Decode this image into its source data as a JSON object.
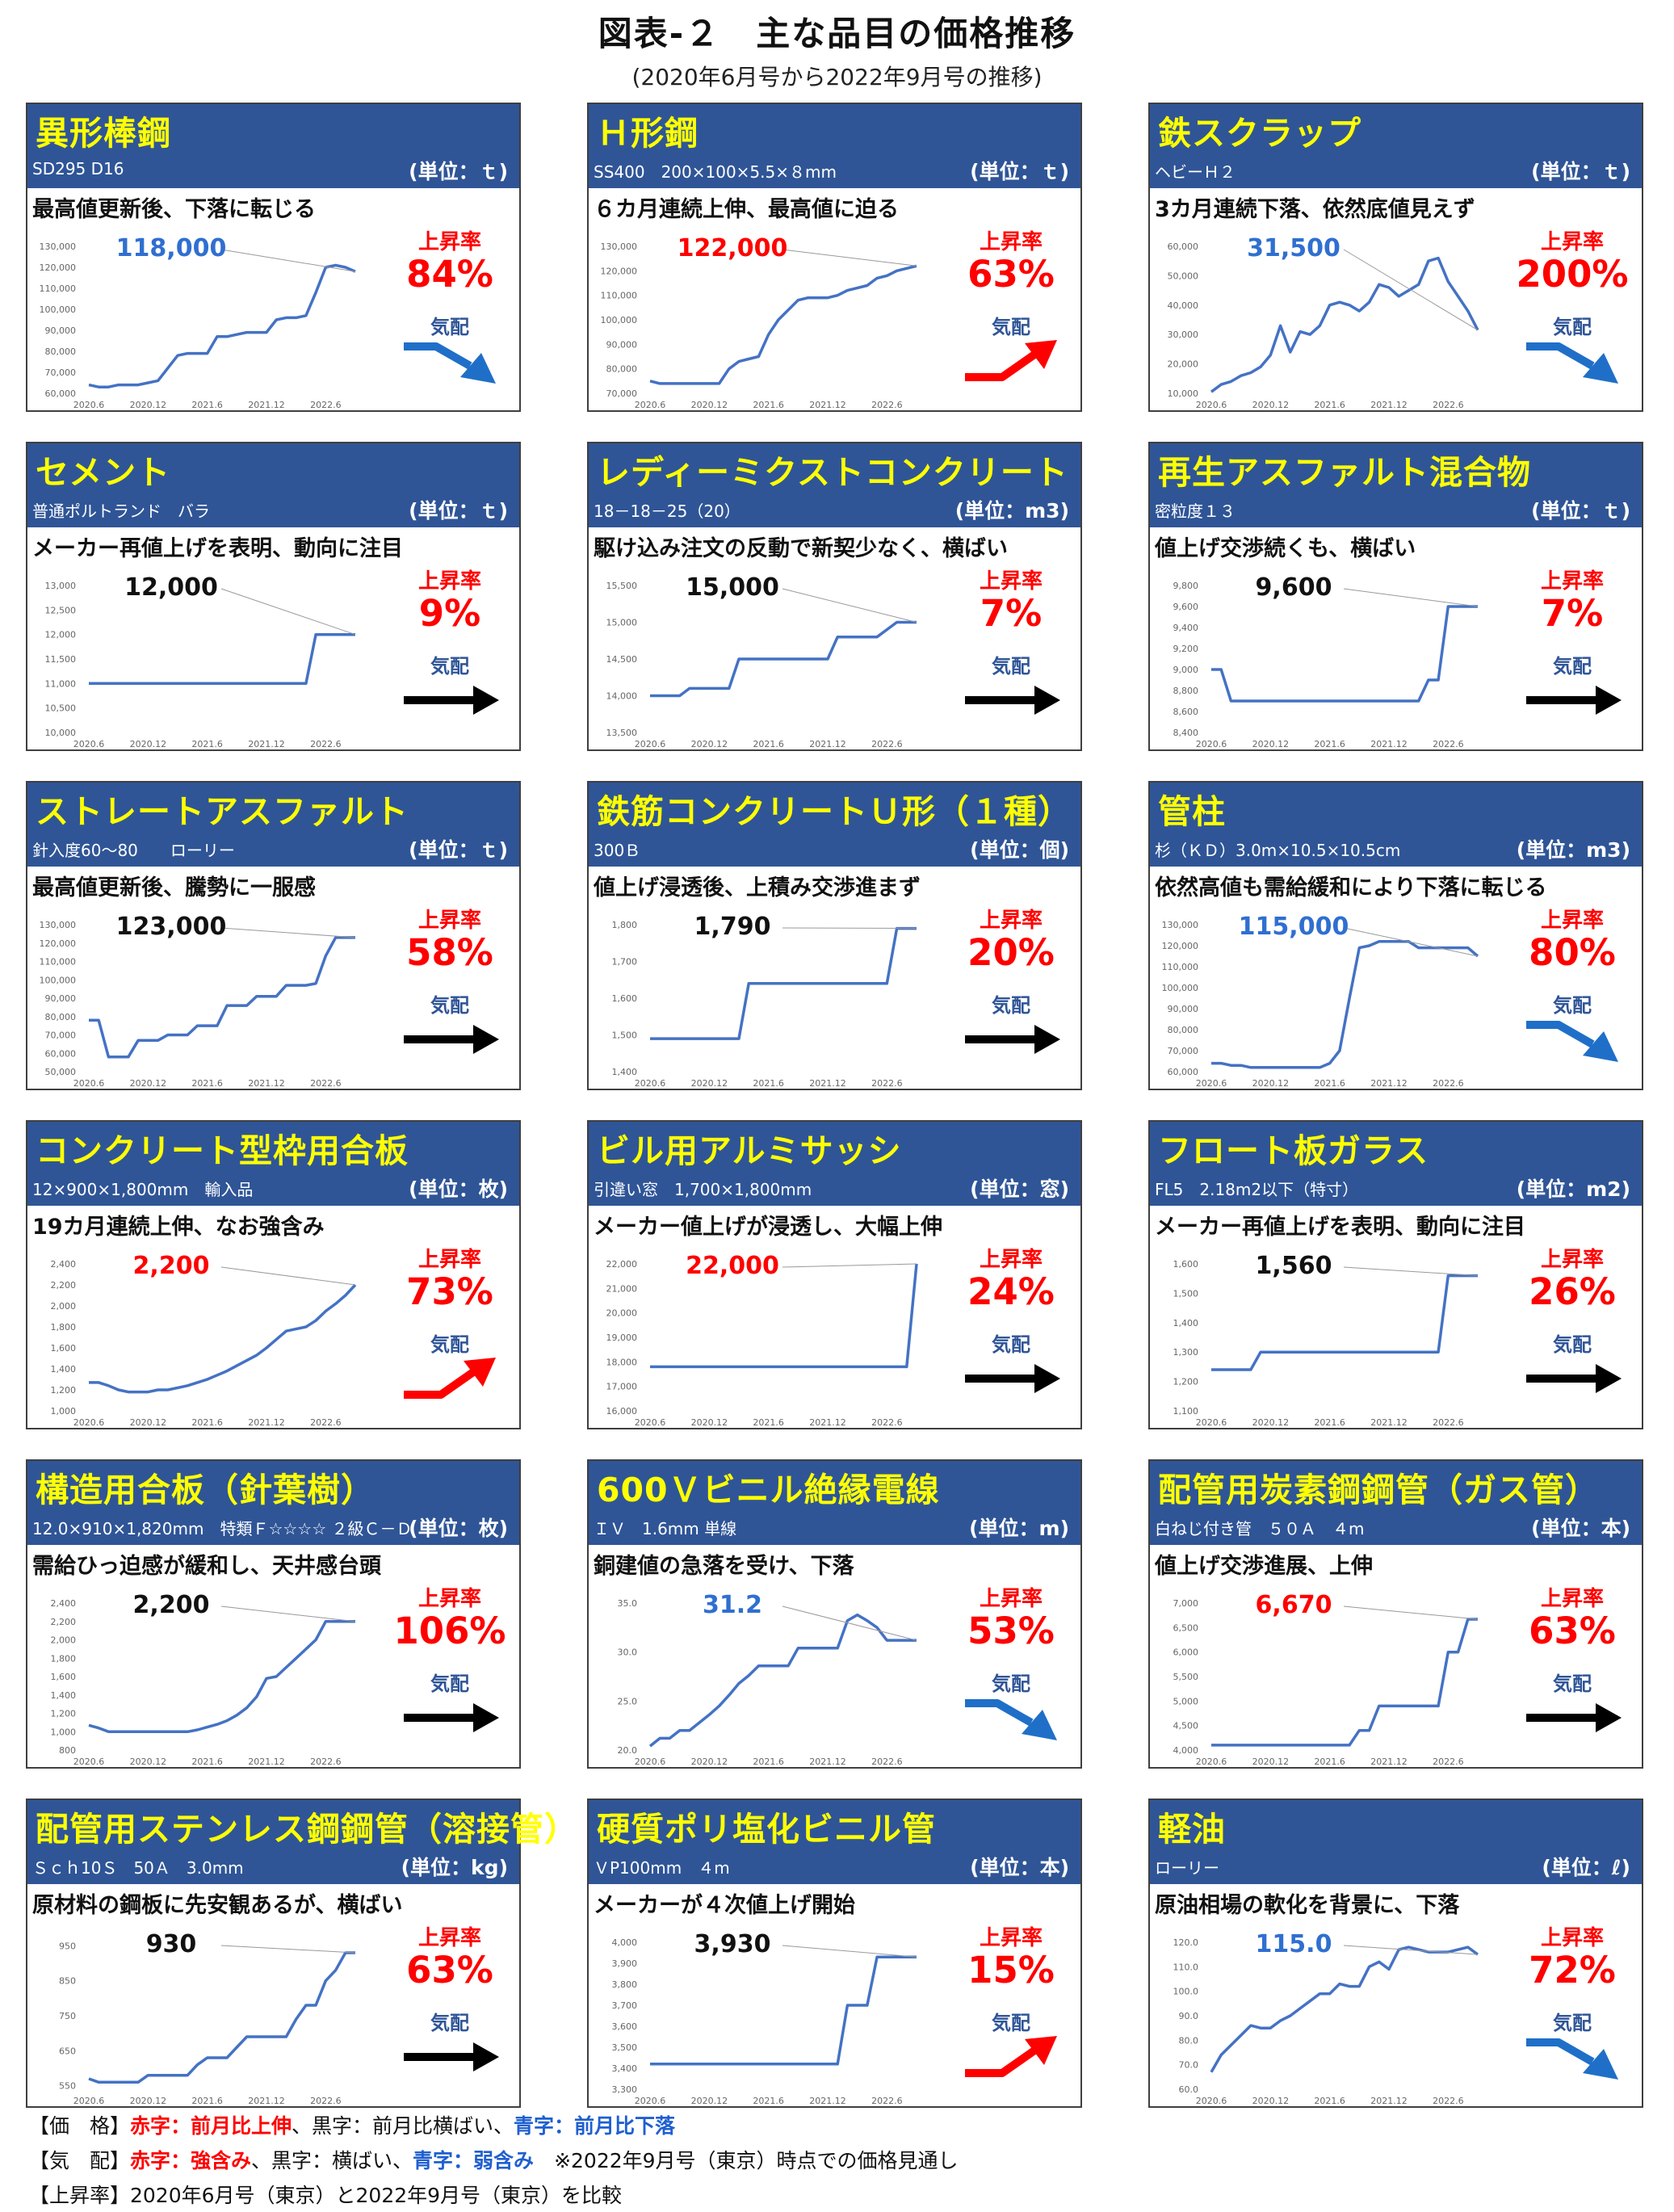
{
  "title": "図表-２　主な品目の価格推移",
  "subtitle": "(2020年6月号から2022年9月号の推移)",
  "colors": {
    "header": "#2f5597",
    "name": "#ffff00",
    "line": "#4472c4",
    "red": "#ff0000",
    "blue": "#2f6fd0",
    "black": "#111111"
  },
  "labels": {
    "rate": "上昇率",
    "kehai": "気配"
  },
  "x_ticks": [
    "2020.6",
    "2020.12",
    "2021.6",
    "2021.12",
    "2022.6"
  ],
  "footer": {
    "l1_head": "【価　格】",
    "l1_red": "赤字：前月比上伸",
    "l1_sep1": "、黒字：前月比横ばい、",
    "l1_blue": "青字：前月比下落",
    "l2_head": "【気　配】",
    "l2_red": "赤字：強含み",
    "l2_sep1": "、黒字：横ばい、",
    "l2_blue": "青字：弱含み",
    "l2_note": "　※2022年9月号（東京）時点での価格見通し",
    "l3": "【上昇率】2020年6月号（東京）と2022年9月号（東京）を比較"
  },
  "chart_data": [
    {
      "type": "line",
      "name": "異形棒鋼",
      "spec": "SD295 D16",
      "unit": "(単位：ｔ)",
      "comment": "最高値更新後、下落に転じる",
      "price": "118,000",
      "price_color": "blue",
      "rate": "84%",
      "trend": "down",
      "y_ticks": [
        "60,000",
        "70,000",
        "80,000",
        "90,000",
        "100,000",
        "110,000",
        "120,000",
        "130,000"
      ],
      "ylim": [
        60000,
        130000
      ],
      "values": [
        64000,
        63000,
        63000,
        64000,
        64000,
        64000,
        65000,
        66000,
        72000,
        78000,
        79000,
        79000,
        79000,
        87000,
        87000,
        88000,
        89000,
        89000,
        89000,
        95000,
        96000,
        96000,
        97000,
        108000,
        120000,
        121000,
        120000,
        118000
      ]
    },
    {
      "type": "line",
      "name": "Ｈ形鋼",
      "spec": "SS400　200×100×5.5×８mm",
      "unit": "(単位：ｔ)",
      "comment": "６カ月連続上伸、最高値に迫る",
      "price": "122,000",
      "price_color": "red",
      "rate": "63%",
      "trend": "up",
      "y_ticks": [
        "70,000",
        "80,000",
        "90,000",
        "100,000",
        "110,000",
        "120,000",
        "130,000"
      ],
      "ylim": [
        70000,
        130000
      ],
      "values": [
        75000,
        74000,
        74000,
        74000,
        74000,
        74000,
        74000,
        74000,
        80000,
        83000,
        84000,
        85000,
        94000,
        100000,
        104000,
        108000,
        109000,
        109000,
        109000,
        110000,
        112000,
        113000,
        114000,
        117000,
        118000,
        120000,
        121000,
        122000
      ]
    },
    {
      "type": "line",
      "name": "鉄スクラップ",
      "spec": "ヘビーＨ２",
      "unit": "(単位：ｔ)",
      "comment": "3カ月連続下落、依然底値見えず",
      "price": "31,500",
      "price_color": "blue",
      "rate": "200%",
      "trend": "down",
      "y_ticks": [
        "10,000",
        "20,000",
        "30,000",
        "40,000",
        "50,000",
        "60,000"
      ],
      "ylim": [
        10000,
        60000
      ],
      "values": [
        10500,
        13000,
        14000,
        16000,
        17000,
        19000,
        23000,
        33000,
        24000,
        31000,
        30000,
        33000,
        40000,
        41000,
        40000,
        38000,
        41000,
        47000,
        46000,
        43000,
        45000,
        47000,
        55000,
        56000,
        48000,
        43000,
        38000,
        31500
      ]
    },
    {
      "type": "line",
      "name": "セメント",
      "spec": "普通ポルトランド　バラ",
      "unit": "(単位：ｔ)",
      "comment": "メーカー再値上げを表明、動向に注目",
      "price": "12,000",
      "price_color": "black",
      "rate": "9%",
      "trend": "flat",
      "y_ticks": [
        "10,000",
        "10,500",
        "11,000",
        "11,500",
        "12,000",
        "12,500",
        "13,000"
      ],
      "ylim": [
        10000,
        13000
      ],
      "values": [
        11000,
        11000,
        11000,
        11000,
        11000,
        11000,
        11000,
        11000,
        11000,
        11000,
        11000,
        11000,
        11000,
        11000,
        11000,
        11000,
        11000,
        11000,
        11000,
        11000,
        11000,
        11000,
        11000,
        12000,
        12000,
        12000,
        12000,
        12000
      ]
    },
    {
      "type": "line",
      "name": "レディーミクストコンクリート",
      "spec": "18－18－25（20）",
      "unit": "(単位：m3)",
      "comment": "駆け込み注文の反動で新契少なく、横ばい",
      "price": "15,000",
      "price_color": "black",
      "rate": "7%",
      "trend": "flat",
      "y_ticks": [
        "13,500",
        "14,000",
        "14,500",
        "15,000",
        "15,500"
      ],
      "ylim": [
        13500,
        15500
      ],
      "values": [
        14000,
        14000,
        14000,
        14000,
        14100,
        14100,
        14100,
        14100,
        14100,
        14500,
        14500,
        14500,
        14500,
        14500,
        14500,
        14500,
        14500,
        14500,
        14500,
        14800,
        14800,
        14800,
        14800,
        14800,
        14900,
        15000,
        15000,
        15000
      ]
    },
    {
      "type": "line",
      "name": "再生アスファルト混合物",
      "spec": "密粒度１３",
      "unit": "(単位：ｔ)",
      "comment": "値上げ交渉続くも、横ばい",
      "price": "9,600",
      "price_color": "black",
      "rate": "7%",
      "trend": "flat",
      "y_ticks": [
        "8,400",
        "8,600",
        "8,800",
        "9,000",
        "9,200",
        "9,400",
        "9,600",
        "9,800"
      ],
      "ylim": [
        8400,
        9800
      ],
      "values": [
        9000,
        9000,
        8700,
        8700,
        8700,
        8700,
        8700,
        8700,
        8700,
        8700,
        8700,
        8700,
        8700,
        8700,
        8700,
        8700,
        8700,
        8700,
        8700,
        8700,
        8700,
        8700,
        8900,
        8900,
        9600,
        9600,
        9600,
        9600
      ]
    },
    {
      "type": "line",
      "name": "ストレートアスファルト",
      "spec": "針入度60～80　　ローリー",
      "unit": "(単位：ｔ)",
      "comment": "最高値更新後、騰勢に一服感",
      "price": "123,000",
      "price_color": "black",
      "rate": "58%",
      "trend": "flat",
      "y_ticks": [
        "50,000",
        "60,000",
        "70,000",
        "80,000",
        "90,000",
        "100,000",
        "110,000",
        "120,000",
        "130,000"
      ],
      "ylim": [
        50000,
        130000
      ],
      "values": [
        78000,
        78000,
        58000,
        58000,
        58000,
        67000,
        67000,
        67000,
        70000,
        70000,
        70000,
        75000,
        75000,
        75000,
        86000,
        86000,
        86000,
        91000,
        91000,
        91000,
        97000,
        97000,
        97000,
        98000,
        113000,
        123000,
        123000,
        123000
      ]
    },
    {
      "type": "line",
      "name": "鉄筋コンクリートＵ形（１種）",
      "spec": "300Ｂ",
      "unit": "(単位：個)",
      "comment": "値上げ浸透後、上積み交渉進まず",
      "price": "1,790",
      "price_color": "black",
      "rate": "20%",
      "trend": "flat",
      "y_ticks": [
        "1,400",
        "1,500",
        "1,600",
        "1,700",
        "1,800"
      ],
      "ylim": [
        1400,
        1800
      ],
      "values": [
        1490,
        1490,
        1490,
        1490,
        1490,
        1490,
        1490,
        1490,
        1490,
        1490,
        1640,
        1640,
        1640,
        1640,
        1640,
        1640,
        1640,
        1640,
        1640,
        1640,
        1640,
        1640,
        1640,
        1640,
        1640,
        1790,
        1790,
        1790
      ]
    },
    {
      "type": "line",
      "name": "管柱",
      "spec": "杉（ＫＤ）3.0m×10.5×10.5cm",
      "unit": "(単位：m3)",
      "comment": "依然高値も需給緩和により下落に転じる",
      "price": "115,000",
      "price_color": "blue",
      "rate": "80%",
      "trend": "down",
      "y_ticks": [
        "60,000",
        "70,000",
        "80,000",
        "90,000",
        "100,000",
        "110,000",
        "120,000",
        "130,000"
      ],
      "ylim": [
        60000,
        130000
      ],
      "values": [
        64000,
        64000,
        63000,
        63000,
        62000,
        62000,
        62000,
        62000,
        62000,
        62000,
        62000,
        62000,
        64000,
        70000,
        95000,
        119000,
        120000,
        122000,
        122000,
        122000,
        122000,
        119000,
        119000,
        119000,
        119000,
        119000,
        119000,
        115000
      ]
    },
    {
      "type": "line",
      "name": "コンクリート型枠用合板",
      "spec": "12×900×1,800mm　輸入品",
      "unit": "(単位：枚)",
      "comment": "19カ月連続上伸、なお強含み",
      "price": "2,200",
      "price_color": "red",
      "rate": "73%",
      "trend": "up",
      "y_ticks": [
        "1,000",
        "1,200",
        "1,400",
        "1,600",
        "1,800",
        "2,000",
        "2,200",
        "2,400"
      ],
      "ylim": [
        1000,
        2400
      ],
      "values": [
        1270,
        1270,
        1240,
        1200,
        1180,
        1180,
        1180,
        1200,
        1200,
        1220,
        1240,
        1270,
        1300,
        1340,
        1380,
        1430,
        1480,
        1530,
        1600,
        1680,
        1760,
        1780,
        1800,
        1860,
        1950,
        2020,
        2100,
        2200
      ]
    },
    {
      "type": "line",
      "name": "ビル用アルミサッシ",
      "spec": "引違い窓　1,700×1,800mm",
      "unit": "(単位：窓)",
      "comment": "メーカー値上げが浸透し、大幅上伸",
      "price": "22,000",
      "price_color": "red",
      "rate": "24%",
      "trend": "flat",
      "y_ticks": [
        "16,000",
        "17,000",
        "18,000",
        "19,000",
        "20,000",
        "21,000",
        "22,000"
      ],
      "ylim": [
        16000,
        22000
      ],
      "values": [
        17800,
        17800,
        17800,
        17800,
        17800,
        17800,
        17800,
        17800,
        17800,
        17800,
        17800,
        17800,
        17800,
        17800,
        17800,
        17800,
        17800,
        17800,
        17800,
        17800,
        17800,
        17800,
        17800,
        17800,
        17800,
        17800,
        17800,
        22000
      ]
    },
    {
      "type": "line",
      "name": "フロート板ガラス",
      "spec": "FL5　2.18m2以下（特寸）",
      "unit": "(単位：m2)",
      "comment": "メーカー再値上げを表明、動向に注目",
      "price": "1,560",
      "price_color": "black",
      "rate": "26%",
      "trend": "flat",
      "y_ticks": [
        "1,100",
        "1,200",
        "1,300",
        "1,400",
        "1,500",
        "1,600"
      ],
      "ylim": [
        1100,
        1600
      ],
      "values": [
        1240,
        1240,
        1240,
        1240,
        1240,
        1300,
        1300,
        1300,
        1300,
        1300,
        1300,
        1300,
        1300,
        1300,
        1300,
        1300,
        1300,
        1300,
        1300,
        1300,
        1300,
        1300,
        1300,
        1300,
        1560,
        1560,
        1560,
        1560
      ]
    },
    {
      "type": "line",
      "name": "構造用合板（針葉樹）",
      "spec": "12.0×910×1,820mm　特類Ｆ☆☆☆☆ ２級Ｃ－Ｄ",
      "unit": "(単位：枚)",
      "comment": "需給ひっ迫感が緩和し、天井感台頭",
      "price": "2,200",
      "price_color": "black",
      "rate": "106%",
      "trend": "flat",
      "y_ticks": [
        "800",
        "1,000",
        "1,200",
        "1,400",
        "1,600",
        "1,800",
        "2,000",
        "2,200",
        "2,400"
      ],
      "ylim": [
        800,
        2400
      ],
      "values": [
        1070,
        1040,
        1000,
        1000,
        1000,
        1000,
        1000,
        1000,
        1000,
        1000,
        1000,
        1020,
        1050,
        1080,
        1120,
        1180,
        1260,
        1380,
        1580,
        1600,
        1700,
        1800,
        1900,
        2000,
        2200,
        2200,
        2200,
        2200
      ]
    },
    {
      "type": "line",
      "name": "600Ｖビニル絶縁電線",
      "spec": "ＩＶ　1.6mm 単線",
      "unit": "(単位：m)",
      "comment": "銅建値の急落を受け、下落",
      "price": "31.2",
      "price_color": "blue",
      "rate": "53%",
      "trend": "down",
      "y_ticks": [
        "20.0",
        "25.0",
        "30.0",
        "35.0"
      ],
      "ylim": [
        20,
        35
      ],
      "values": [
        20.4,
        21.2,
        21.2,
        22.0,
        22.0,
        22.8,
        23.6,
        24.5,
        25.6,
        26.8,
        27.6,
        28.6,
        28.6,
        28.6,
        28.6,
        30.4,
        30.4,
        30.4,
        30.4,
        30.4,
        33.2,
        33.8,
        33.2,
        32.5,
        31.2,
        31.2,
        31.2,
        31.2
      ]
    },
    {
      "type": "line",
      "name": "配管用炭素鋼鋼管（ガス管）",
      "spec": "白ねじ付き管　５０Ａ　４m",
      "unit": "(単位：本)",
      "comment": "値上げ交渉進展、上伸",
      "price": "6,670",
      "price_color": "red",
      "rate": "63%",
      "trend": "flat",
      "y_ticks": [
        "4,000",
        "4,500",
        "5,000",
        "5,500",
        "6,000",
        "6,500",
        "7,000"
      ],
      "ylim": [
        4000,
        7000
      ],
      "values": [
        4100,
        4100,
        4100,
        4100,
        4100,
        4100,
        4100,
        4100,
        4100,
        4100,
        4100,
        4100,
        4100,
        4100,
        4100,
        4400,
        4400,
        4900,
        4900,
        4900,
        4900,
        4900,
        4900,
        4900,
        6000,
        6000,
        6670,
        6670
      ]
    },
    {
      "type": "line",
      "name": "配管用ステンレス鋼鋼管（溶接管）",
      "spec": "Ｓｃｈ10Ｓ　50Ａ　3.0mm",
      "unit": "(単位：kg)",
      "comment": "原材料の鋼板に先安観あるが、横ばい",
      "price": "930",
      "price_color": "black",
      "rate": "63%",
      "trend": "flat",
      "y_ticks": [
        "550",
        "650",
        "750",
        "850",
        "950"
      ],
      "ylim": [
        540,
        960
      ],
      "values": [
        570,
        560,
        560,
        560,
        560,
        560,
        580,
        580,
        580,
        580,
        580,
        610,
        630,
        630,
        630,
        660,
        690,
        690,
        690,
        690,
        690,
        740,
        780,
        780,
        850,
        880,
        930,
        930
      ]
    },
    {
      "type": "line",
      "name": "硬質ポリ塩化ビニル管",
      "spec": "ＶP100mm　４m",
      "unit": "(単位：本)",
      "comment": "メーカーが４次値上げ開始",
      "price": "3,930",
      "price_color": "black",
      "rate": "15%",
      "trend": "up",
      "y_ticks": [
        "3,300",
        "3,400",
        "3,500",
        "3,600",
        "3,700",
        "3,800",
        "3,900",
        "4,000"
      ],
      "ylim": [
        3300,
        4000
      ],
      "values": [
        3420,
        3420,
        3420,
        3420,
        3420,
        3420,
        3420,
        3420,
        3420,
        3420,
        3420,
        3420,
        3420,
        3420,
        3420,
        3420,
        3420,
        3420,
        3420,
        3420,
        3700,
        3700,
        3700,
        3930,
        3930,
        3930,
        3930,
        3930
      ]
    },
    {
      "type": "line",
      "name": "軽油",
      "spec": "ローリー",
      "unit": "(単位：ℓ)",
      "comment": "原油相場の軟化を背景に、下落",
      "price": "115.0",
      "price_color": "blue",
      "rate": "72%",
      "trend": "down",
      "y_ticks": [
        "60.0",
        "70.0",
        "80.0",
        "90.0",
        "100.0",
        "110.0",
        "120.0"
      ],
      "ylim": [
        60,
        120
      ],
      "values": [
        67.0,
        74.0,
        78.0,
        82.0,
        86.0,
        85.0,
        85.0,
        88.0,
        90.0,
        93.0,
        96.0,
        99.0,
        99.0,
        103.0,
        102.0,
        102.0,
        110.0,
        112.0,
        109.0,
        117.0,
        118.0,
        117.0,
        116.0,
        116.0,
        116.0,
        117.0,
        118.0,
        115.0
      ]
    }
  ]
}
